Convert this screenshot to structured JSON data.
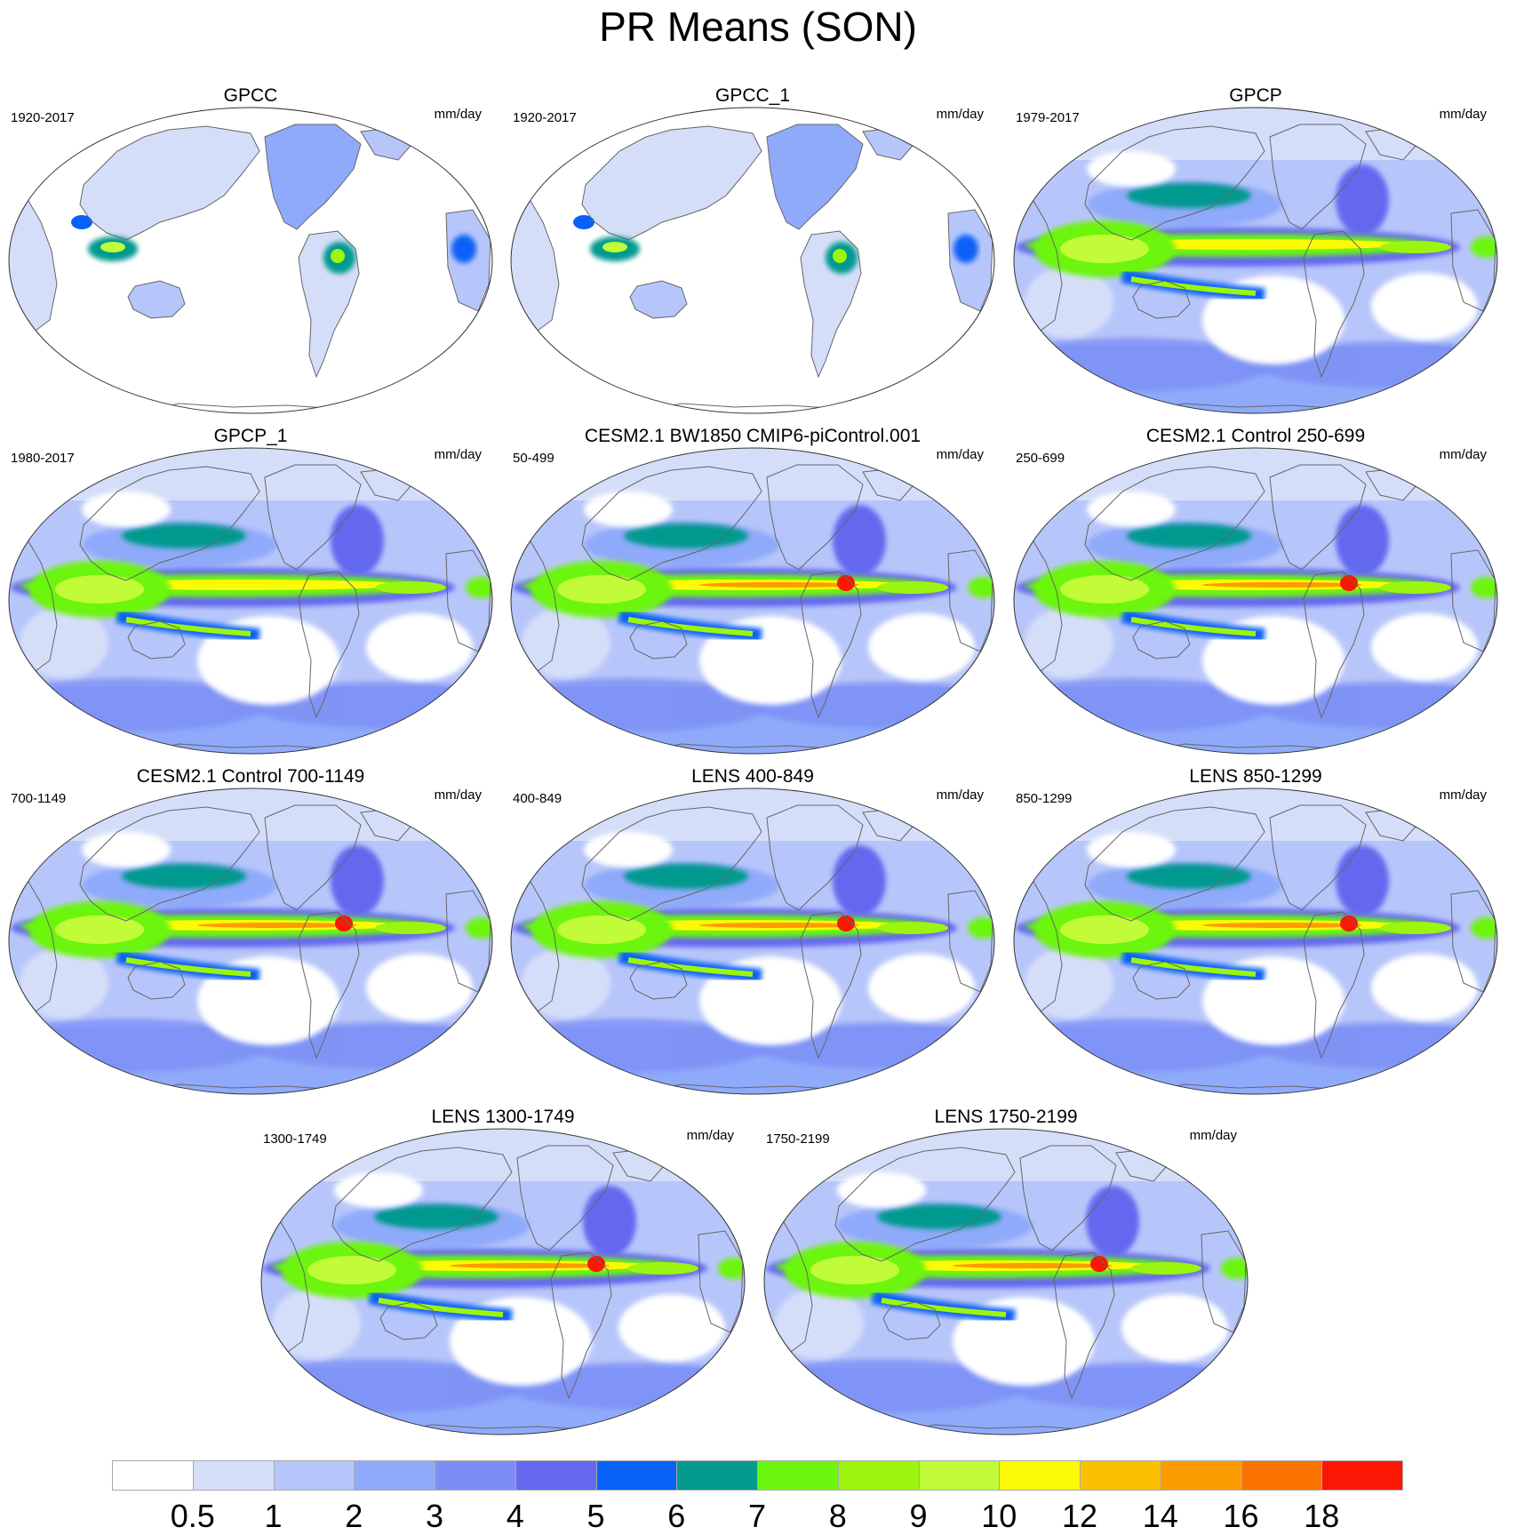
{
  "title": "PR Means (SON)",
  "units": "mm/day",
  "panels": [
    {
      "id": "gpcc",
      "title": "GPCC",
      "period": "1920-2017",
      "dataset": "obs-land"
    },
    {
      "id": "gpcc1",
      "title": "GPCC_1",
      "period": "1920-2017",
      "dataset": "obs-land"
    },
    {
      "id": "gpcp",
      "title": "GPCP",
      "period": "1979-2017",
      "dataset": "obs"
    },
    {
      "id": "gpcp1",
      "title": "GPCP_1",
      "period": "1980-2017",
      "dataset": "obs"
    },
    {
      "id": "cesm-bw1850",
      "title": "CESM2.1 BW1850 CMIP6-piControl.001",
      "period": "50-499",
      "dataset": "model"
    },
    {
      "id": "cesm-ctrl-250",
      "title": "CESM2.1 Control 250-699",
      "period": "250-699",
      "dataset": "model"
    },
    {
      "id": "cesm-ctrl-700",
      "title": "CESM2.1 Control 700-1149",
      "period": "700-1149",
      "dataset": "model"
    },
    {
      "id": "lens-400",
      "title": "LENS 400-849",
      "period": "400-849",
      "dataset": "model"
    },
    {
      "id": "lens-850",
      "title": "LENS 850-1299",
      "period": "850-1299",
      "dataset": "model"
    },
    {
      "id": "lens-1300",
      "title": "LENS 1300-1749",
      "period": "1300-1749",
      "dataset": "model"
    },
    {
      "id": "lens-1750",
      "title": "LENS 1750-2199",
      "period": "1750-2199",
      "dataset": "model"
    }
  ],
  "colorbar": {
    "labels": [
      "0.5",
      "1",
      "2",
      "3",
      "4",
      "5",
      "6",
      "7",
      "8",
      "9",
      "10",
      "12",
      "14",
      "16",
      "18"
    ],
    "colors": [
      "#ffffff",
      "#d5def9",
      "#b7c6fa",
      "#8faafa",
      "#7c8ef5",
      "#6468ef",
      "#0761f7",
      "#04998f",
      "#6cf50d",
      "#9cf50f",
      "#c2fb37",
      "#fcfa06",
      "#fcc000",
      "#fc9c00",
      "#fb7400",
      "#fb1704"
    ]
  },
  "map_colors": {
    "coast": "#666666",
    "border": "#555555"
  }
}
